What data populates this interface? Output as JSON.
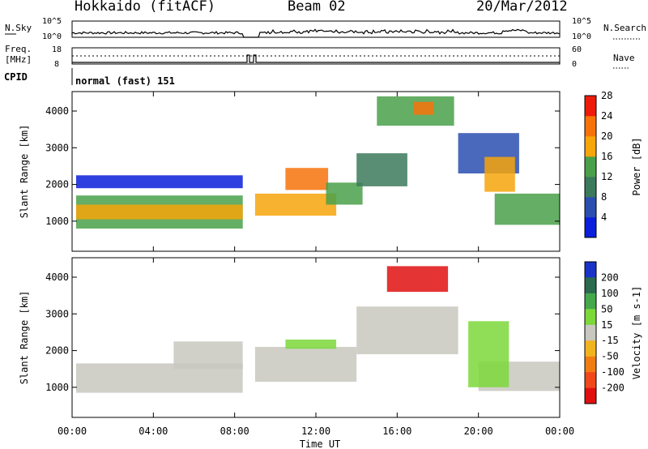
{
  "header": {
    "station": "Hokkaido (fitACF)",
    "beam": "Beam 02",
    "date": "20/Mar/2012"
  },
  "noise_panel": {
    "left_label": "N.Sky",
    "left_ticks": [
      "10^5",
      "10^0"
    ],
    "right_ticks": [
      "10^5",
      "10^0"
    ],
    "right_label": "N.Search"
  },
  "freq_panel": {
    "left_label_1": "Freq.",
    "left_label_2": "[MHz]",
    "left_ticks": [
      "18",
      "8"
    ],
    "right_ticks": [
      "60",
      "0"
    ],
    "right_label": "Nave"
  },
  "cpid": {
    "label": "CPID",
    "value": "normal (fast) 151"
  },
  "chart_data": [
    {
      "type": "heatmap",
      "name": "power",
      "x_ticks": [
        "00:00",
        "04:00",
        "08:00",
        "12:00",
        "16:00",
        "20:00",
        "00:00"
      ],
      "x_range_hours": [
        0,
        24
      ],
      "xlabel": "Time UT",
      "ylabel": "Slant Range [km]",
      "y_ticks": [
        "1000",
        "2000",
        "3000",
        "4000"
      ],
      "y_range_km": [
        180,
        4530
      ],
      "colorbar_label": "Power [dB]",
      "colorbar_ticks": [
        "4",
        "8",
        "12",
        "16",
        "20",
        "24",
        "28"
      ],
      "colorbar_colors": [
        "#0a1edc",
        "#2a4fb0",
        "#3c7a5c",
        "#4aa04a",
        "#f6a50a",
        "#f7730a",
        "#ee1b0a"
      ],
      "regions": [
        {
          "t0": 0.2,
          "t1": 8.4,
          "r0": 800,
          "r1": 1700,
          "level": 0.45
        },
        {
          "t0": 0.2,
          "t1": 8.4,
          "r0": 1050,
          "r1": 1450,
          "level": 0.72
        },
        {
          "t0": 0.2,
          "t1": 8.4,
          "r0": 1900,
          "r1": 2250,
          "level": 0.08
        },
        {
          "t0": 9.0,
          "t1": 13.0,
          "r0": 1150,
          "r1": 1750,
          "level": 0.6
        },
        {
          "t0": 10.5,
          "t1": 12.6,
          "r0": 1850,
          "r1": 2450,
          "level": 0.75
        },
        {
          "t0": 12.5,
          "t1": 14.3,
          "r0": 1450,
          "r1": 2050,
          "level": 0.55
        },
        {
          "t0": 14.0,
          "t1": 16.5,
          "r0": 1950,
          "r1": 2850,
          "level": 0.35
        },
        {
          "t0": 15.0,
          "t1": 18.8,
          "r0": 3600,
          "r1": 4400,
          "level": 0.45
        },
        {
          "t0": 16.8,
          "t1": 17.8,
          "r0": 3900,
          "r1": 4250,
          "level": 0.85
        },
        {
          "t0": 19.0,
          "t1": 22.0,
          "r0": 2300,
          "r1": 3400,
          "level": 0.1
        },
        {
          "t0": 20.8,
          "t1": 24.0,
          "r0": 900,
          "r1": 1750,
          "level": 0.55
        },
        {
          "t0": 20.3,
          "t1": 21.8,
          "r0": 1800,
          "r1": 2750,
          "level": 0.65
        }
      ]
    },
    {
      "type": "heatmap",
      "name": "velocity",
      "x_ticks": [
        "00:00",
        "04:00",
        "08:00",
        "12:00",
        "16:00",
        "20:00",
        "00:00"
      ],
      "x_range_hours": [
        0,
        24
      ],
      "xlabel": "Time UT",
      "ylabel": "Slant Range [km]",
      "y_ticks": [
        "1000",
        "2000",
        "3000",
        "4000"
      ],
      "y_range_km": [
        180,
        4530
      ],
      "colorbar_label": "Velocity [m s-1]",
      "colorbar_ticks": [
        "200",
        "100",
        "50",
        "15",
        "-15",
        "-50",
        "-100",
        "-200"
      ],
      "colorbar_colors": [
        "#1a34c8",
        "#2b6a4e",
        "#45a84a",
        "#7dd83a",
        "#c8c8c0",
        "#f2b41e",
        "#f17c14",
        "#f0481a",
        "#e01010"
      ],
      "regions": [
        {
          "t0": 0.2,
          "t1": 8.4,
          "r0": 850,
          "r1": 1650,
          "level": 4
        },
        {
          "t0": 5.0,
          "t1": 8.4,
          "r0": 1500,
          "r1": 2250,
          "level": 4
        },
        {
          "t0": 9.0,
          "t1": 14.0,
          "r0": 1150,
          "r1": 2100,
          "level": 4
        },
        {
          "t0": 14.0,
          "t1": 19.0,
          "r0": 1900,
          "r1": 3200,
          "level": 4
        },
        {
          "t0": 15.5,
          "t1": 18.5,
          "r0": 3600,
          "r1": 4300,
          "level": 8
        },
        {
          "t0": 20.0,
          "t1": 24.0,
          "r0": 900,
          "r1": 1700,
          "level": 4
        },
        {
          "t0": 19.5,
          "t1": 21.5,
          "r0": 1000,
          "r1": 2800,
          "level": 3
        },
        {
          "t0": 10.5,
          "t1": 13.0,
          "r0": 2050,
          "r1": 2300,
          "level": 3
        }
      ]
    }
  ]
}
